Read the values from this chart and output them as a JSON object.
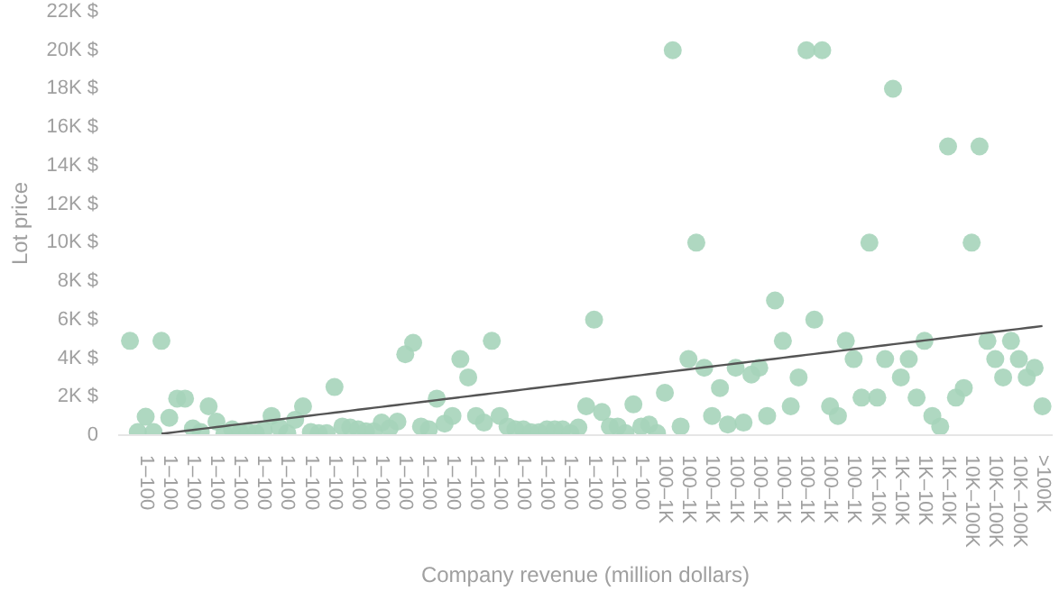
{
  "chart_data": {
    "type": "scatter",
    "xlabel": "Company revenue (million dollars)",
    "ylabel": "Lot price",
    "categories": [
      null,
      null,
      "1–100",
      null,
      null,
      "1–100",
      null,
      null,
      "1–100",
      null,
      null,
      "1–100",
      null,
      null,
      "1–100",
      null,
      null,
      "1–100",
      null,
      null,
      "1–100",
      null,
      null,
      "1–100",
      null,
      null,
      "1–100",
      null,
      null,
      "1–100",
      null,
      null,
      "1–100",
      null,
      null,
      "1–100",
      null,
      null,
      "1–100",
      null,
      null,
      "1–100",
      null,
      null,
      "1–100",
      null,
      null,
      "1–100",
      null,
      null,
      "1–100",
      null,
      null,
      "1–100",
      null,
      null,
      "1–100",
      null,
      null,
      "1–100",
      null,
      null,
      "1–100",
      null,
      null,
      "1–100",
      null,
      null,
      "100–1K",
      null,
      null,
      "100–1K",
      null,
      null,
      "100–1K",
      null,
      null,
      "100–1K",
      null,
      null,
      "100–1K",
      null,
      null,
      "100–1K",
      null,
      null,
      "100–1K",
      null,
      null,
      "100–1K",
      null,
      null,
      "100–1K",
      null,
      null,
      "1K–10K",
      null,
      null,
      "1K–10K",
      null,
      null,
      "1K–10K",
      null,
      null,
      "1K–10K",
      null,
      null,
      "10K–100K",
      null,
      null,
      "10K–100K",
      null,
      null,
      "10K–100K",
      null,
      null,
      ">100K"
    ],
    "series": [
      {
        "marker": "circle",
        "color": "#a6d4ba",
        "values": [
          4900,
          160,
          960,
          160,
          4900,
          900,
          1900,
          1900,
          350,
          160,
          1500,
          700,
          60,
          300,
          160,
          160,
          100,
          250,
          1000,
          400,
          100,
          800,
          1500,
          160,
          100,
          100,
          2500,
          450,
          400,
          300,
          200,
          200,
          650,
          350,
          700,
          4200,
          4800,
          450,
          300,
          1900,
          600,
          1000,
          3950,
          3000,
          1000,
          650,
          4900,
          1000,
          450,
          300,
          300,
          150,
          150,
          300,
          300,
          300,
          100,
          400,
          1500,
          6000,
          1200,
          450,
          450,
          100,
          1600,
          450,
          550,
          100,
          2200,
          20000,
          450,
          3950,
          10000,
          3500,
          1000,
          2450,
          550,
          3500,
          650,
          3150,
          3500,
          1000,
          7000,
          4900,
          1500,
          3000,
          20000,
          6000,
          20000,
          1500,
          1000,
          4900,
          3950,
          1950,
          10000,
          1950,
          3950,
          18000,
          3000,
          3950,
          1950,
          4900,
          1000,
          450,
          15000,
          1950,
          2450,
          10000,
          15000,
          4900,
          3950,
          3000,
          4900,
          3950,
          3000,
          3500,
          1500
        ]
      },
      {
        "type": "line",
        "color": "#555555",
        "values": [
          null,
          null,
          null,
          null,
          70,
          120,
          170,
          220,
          270,
          320,
          370,
          420,
          470,
          520,
          570,
          620,
          670,
          720,
          770,
          820,
          870,
          920,
          970,
          1020,
          1070,
          1120,
          1170,
          1220,
          1270,
          1320,
          1370,
          1420,
          1470,
          1520,
          1570,
          1620,
          1670,
          1720,
          1770,
          1820,
          1870,
          1920,
          1970,
          2020,
          2070,
          2120,
          2170,
          2220,
          2270,
          2320,
          2370,
          2420,
          2470,
          2520,
          2570,
          2620,
          2670,
          2720,
          2770,
          2820,
          2870,
          2920,
          2970,
          3020,
          3070,
          3120,
          3170,
          3220,
          3270,
          3320,
          3370,
          3420,
          3470,
          3520,
          3570,
          3620,
          3670,
          3720,
          3770,
          3820,
          3870,
          3920,
          3970,
          4020,
          4070,
          4120,
          4170,
          4220,
          4270,
          4320,
          4370,
          4420,
          4470,
          4520,
          4570,
          4620,
          4670,
          4720,
          4770,
          4820,
          4870,
          4920,
          4970,
          5020,
          5070,
          5120,
          5170,
          5220,
          5270,
          5320,
          5370,
          5420,
          5470,
          5520,
          5570,
          5620,
          5670
        ]
      }
    ],
    "ylim": [
      0,
      22000
    ],
    "yticks": [
      0,
      {
        "value": 2000,
        "label": "2K $"
      },
      {
        "value": 4000,
        "label": "4K $"
      },
      {
        "value": 6000,
        "label": "6K $"
      },
      {
        "value": 8000,
        "label": "8K $"
      },
      {
        "value": 10000,
        "label": "10K $"
      },
      {
        "value": 12000,
        "label": "12K $"
      },
      {
        "value": 14000,
        "label": "14K $"
      },
      {
        "value": 16000,
        "label": "16K $"
      },
      {
        "value": 18000,
        "label": "18K $"
      },
      {
        "value": 20000,
        "label": "20K $"
      },
      {
        "value": 22000,
        "label": "22K $"
      }
    ],
    "grid": false
  }
}
